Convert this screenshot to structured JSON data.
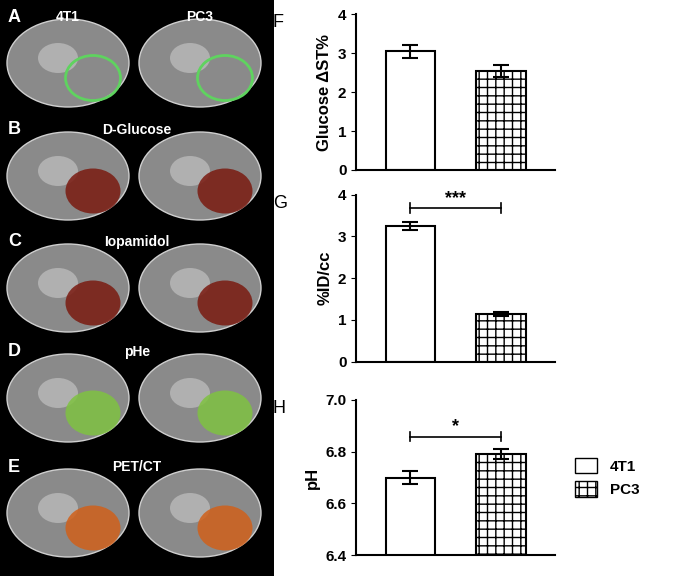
{
  "panels": {
    "labels": [
      "A",
      "B",
      "C",
      "D",
      "E"
    ],
    "columns": [
      "4T1",
      "PC3"
    ],
    "rows": [
      null,
      "D-Glucose",
      "Iopamidol",
      "pHe",
      "PET/CT"
    ]
  },
  "chart_data": [
    {
      "type": "bar",
      "panel": "F",
      "ylabel": "Glucose ΔST%",
      "ylim": [
        0,
        4
      ],
      "yticks": [
        0,
        1,
        2,
        3,
        4
      ],
      "tick_labels": "y",
      "series": [
        {
          "name": "4T1",
          "color": "#ffffff",
          "values": [
            3.05
          ],
          "errors": [
            0.17
          ]
        },
        {
          "name": "PC3",
          "color": "#ffffff",
          "values": [
            2.55
          ],
          "errors": [
            0.15
          ]
        }
      ]
    },
    {
      "type": "bar",
      "panel": "G",
      "ylabel": "%ID/cc",
      "ylim": [
        0,
        4
      ],
      "yticks": [
        0,
        1,
        2,
        3,
        4
      ],
      "tick_labels": "y",
      "significance": "***",
      "series": [
        {
          "name": "4T1",
          "color": "#ffffff",
          "values": [
            3.25
          ],
          "errors": [
            0.1
          ]
        },
        {
          "name": "PC3",
          "color": "#ffffff",
          "values": [
            1.15
          ],
          "errors": [
            0.05
          ]
        }
      ]
    },
    {
      "type": "bar",
      "panel": "H",
      "ylabel": "pH",
      "ylim": [
        6.4,
        7.0
      ],
      "yticks": [
        6.4,
        6.6,
        6.8,
        7.0
      ],
      "tick_labels": "y",
      "significance": "*",
      "legend": "right",
      "series": [
        {
          "name": "4T1",
          "color": "#ffffff",
          "values": [
            6.7
          ],
          "errors": [
            0.025
          ]
        },
        {
          "name": "PC3",
          "color": "#ffffff",
          "values": [
            6.79
          ],
          "errors": [
            0.02
          ]
        }
      ]
    }
  ]
}
